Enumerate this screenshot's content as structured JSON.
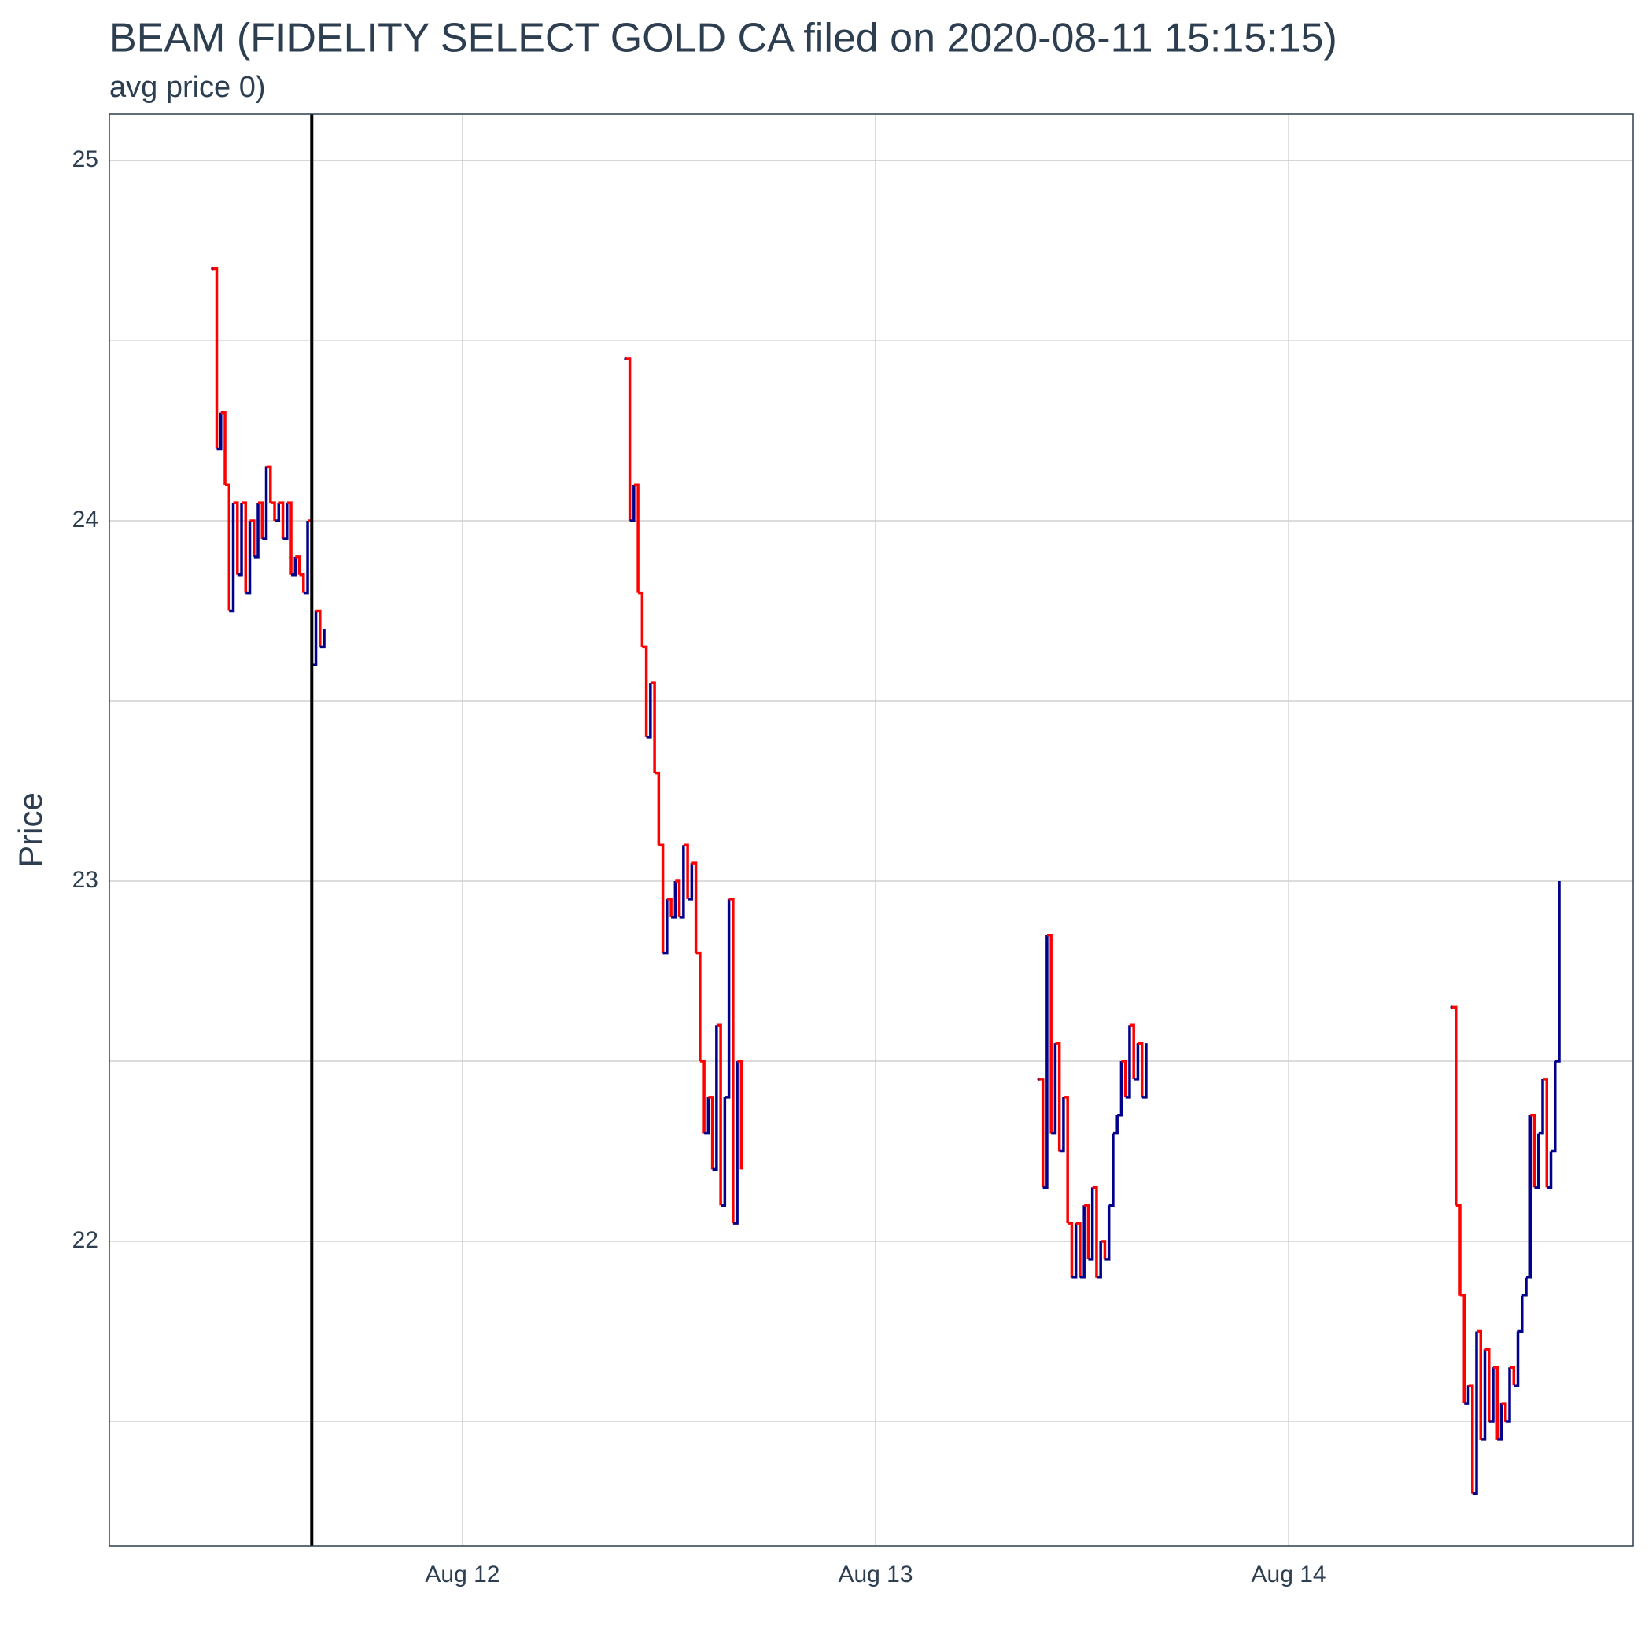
{
  "chart_data": {
    "type": "price-path",
    "title": "BEAM (FIDELITY SELECT GOLD CA filed on 2020-08-11 15:15:15)",
    "subtitle": "avg price 0)",
    "y_label": "Price",
    "up_color": "#00008b",
    "down_color": "#ff0000",
    "vline_color": "#000000",
    "vline": 11.635,
    "xlim": [
      11.145,
      14.834
    ],
    "xticks": [
      {
        "value": 12,
        "label": "Aug 12"
      },
      {
        "value": 13,
        "label": "Aug 13"
      },
      {
        "value": 14,
        "label": "Aug 14"
      }
    ],
    "ylim": [
      21.155,
      25.129
    ],
    "yticks": [
      22,
      23,
      24,
      25
    ],
    "yticks_minor": [
      21.5,
      22.5,
      23.5,
      24.5
    ],
    "grid": true,
    "x": [
      11.395,
      11.405,
      11.415,
      11.425,
      11.435,
      11.445,
      11.455,
      11.465,
      11.475,
      11.485,
      11.495,
      11.505,
      11.515,
      11.525,
      11.535,
      11.545,
      11.555,
      11.565,
      11.575,
      11.585,
      11.595,
      11.605,
      11.615,
      11.625,
      11.635,
      11.645,
      11.655,
      11.665,
      null,
      12.395,
      12.405,
      12.415,
      12.425,
      12.435,
      12.445,
      12.455,
      12.465,
      12.475,
      12.485,
      12.495,
      12.505,
      12.515,
      12.525,
      12.535,
      12.545,
      12.555,
      12.565,
      12.575,
      12.585,
      12.595,
      12.605,
      12.615,
      12.625,
      12.635,
      12.645,
      12.655,
      12.665,
      12.675,
      null,
      13.395,
      13.405,
      13.415,
      13.425,
      13.435,
      13.445,
      13.455,
      13.465,
      13.475,
      13.485,
      13.495,
      13.505,
      13.515,
      13.525,
      13.535,
      13.545,
      13.555,
      13.565,
      13.575,
      13.585,
      13.595,
      13.605,
      13.615,
      13.625,
      13.635,
      13.645,
      13.655,
      null,
      14.395,
      14.405,
      14.415,
      14.425,
      14.435,
      14.445,
      14.455,
      14.465,
      14.475,
      14.485,
      14.495,
      14.505,
      14.515,
      14.525,
      14.535,
      14.545,
      14.555,
      14.565,
      14.575,
      14.585,
      14.595,
      14.605,
      14.615,
      14.625,
      14.635,
      14.645,
      14.655
    ],
    "values": [
      24.7,
      24.2,
      24.3,
      24.1,
      23.75,
      24.05,
      23.85,
      24.05,
      23.8,
      24.0,
      23.9,
      24.05,
      23.95,
      24.15,
      24.05,
      24.0,
      24.05,
      23.95,
      24.05,
      23.85,
      23.9,
      23.85,
      23.8,
      24.0,
      23.6,
      23.75,
      23.65,
      23.7,
      null,
      24.45,
      24.0,
      24.1,
      23.8,
      23.65,
      23.4,
      23.55,
      23.3,
      23.1,
      22.8,
      22.95,
      22.9,
      23.0,
      22.9,
      23.1,
      22.95,
      23.05,
      22.8,
      22.5,
      22.3,
      22.4,
      22.2,
      22.6,
      22.1,
      22.4,
      22.95,
      22.05,
      22.5,
      22.2,
      null,
      22.45,
      22.15,
      22.85,
      22.3,
      22.55,
      22.25,
      22.4,
      22.05,
      21.9,
      22.05,
      21.9,
      22.1,
      21.95,
      22.15,
      21.9,
      22.0,
      21.95,
      22.1,
      22.3,
      22.35,
      22.5,
      22.4,
      22.6,
      22.45,
      22.55,
      22.4,
      22.55,
      null,
      22.65,
      22.1,
      21.85,
      21.55,
      21.6,
      21.3,
      21.75,
      21.45,
      21.7,
      21.5,
      21.65,
      21.45,
      21.55,
      21.5,
      21.65,
      21.6,
      21.75,
      21.85,
      21.9,
      22.35,
      22.15,
      22.3,
      22.45,
      22.15,
      22.25,
      22.5,
      23.0
    ]
  }
}
